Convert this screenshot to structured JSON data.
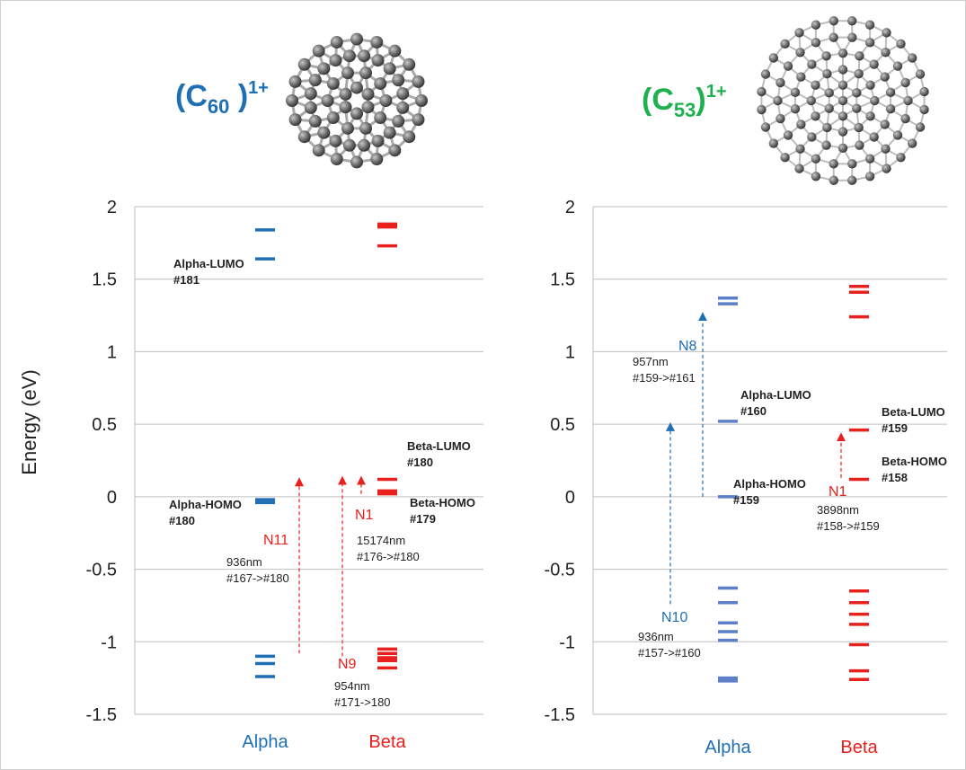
{
  "colors": {
    "alpha": "#1f6fb5",
    "alpha_c53": "#5b7fc8",
    "beta": "#e8201e",
    "c53_title": "#20b050",
    "grid": "#bfbfbf"
  },
  "ylabel": "Energy (eV)",
  "chart_data": [
    {
      "type": "energy-level diagram",
      "title": {
        "base": "(C",
        "sub": "60",
        "tail": " )",
        "sup": "1+"
      },
      "ylim": [
        -1.5,
        2
      ],
      "yticks": [
        "2",
        "1.5",
        "1",
        "0.5",
        "0",
        "-0.5",
        "-1",
        "-1.5"
      ],
      "grid": true,
      "categories": [
        "Alpha",
        "Beta"
      ],
      "levels": {
        "Alpha": [
          1.84,
          1.64,
          -0.02,
          -0.04,
          -1.1,
          -1.15,
          -1.24
        ],
        "Beta": [
          1.88,
          1.86,
          1.73,
          0.12,
          0.04,
          0.02,
          -1.05,
          -1.08,
          -1.11,
          -1.13,
          -1.18
        ]
      },
      "labels": [
        {
          "id": "alpha-lumo",
          "lines": [
            "Alpha-LUMO",
            "#181"
          ]
        },
        {
          "id": "alpha-homo",
          "lines": [
            "Alpha-HOMO",
            "#180"
          ]
        },
        {
          "id": "beta-lumo",
          "lines": [
            "Beta-LUMO",
            "#180"
          ]
        },
        {
          "id": "beta-homo",
          "lines": [
            "Beta-HOMO",
            "#179"
          ]
        }
      ],
      "transitions": [
        {
          "name": "N11",
          "wavelength": "936nm",
          "orbitals": "#167->#180",
          "from": -1.08,
          "to": 0.14,
          "spin": "beta"
        },
        {
          "name": "N9",
          "wavelength": "954nm",
          "orbitals": "#171->180",
          "from": -1.1,
          "to": 0.15,
          "spin": "beta"
        },
        {
          "name": "N1",
          "wavelength": "15174nm",
          "orbitals": "#176->#180",
          "from": 0.02,
          "to": 0.15,
          "spin": "beta"
        }
      ]
    },
    {
      "type": "energy-level diagram",
      "title": {
        "base": "(C",
        "sub": "53",
        "tail": ")",
        "sup": "1+"
      },
      "ylim": [
        -1.5,
        2
      ],
      "yticks": [
        "2",
        "1.5",
        "1",
        "0.5",
        "0",
        "-0.5",
        "-1",
        "-1.5"
      ],
      "grid": true,
      "categories": [
        "Alpha",
        "Beta"
      ],
      "levels": {
        "Alpha": [
          1.37,
          1.33,
          0.52,
          0.0,
          -0.63,
          -0.73,
          -0.87,
          -0.93,
          -0.99,
          -1.25,
          -1.27
        ],
        "Beta": [
          1.45,
          1.41,
          1.24,
          0.46,
          0.12,
          -0.65,
          -0.73,
          -0.81,
          -0.88,
          -1.02,
          -1.2,
          -1.26
        ]
      },
      "labels": [
        {
          "id": "alpha-lumo",
          "lines": [
            "Alpha-LUMO",
            "#160"
          ]
        },
        {
          "id": "alpha-homo",
          "lines": [
            "Alpha-HOMO",
            "#159"
          ]
        },
        {
          "id": "beta-lumo",
          "lines": [
            "Beta-LUMO",
            "#159"
          ]
        },
        {
          "id": "beta-homo",
          "lines": [
            "Beta-HOMO",
            "#158"
          ]
        }
      ],
      "transitions": [
        {
          "name": "N8",
          "wavelength": "957nm",
          "orbitals": "#159->#161",
          "from": 0.0,
          "to": 1.28,
          "spin": "alpha"
        },
        {
          "name": "N10",
          "wavelength": "936nm",
          "orbitals": "#157->#160",
          "from": -0.74,
          "to": 0.52,
          "spin": "alpha"
        },
        {
          "name": "N1",
          "wavelength": "3898nm",
          "orbitals": "#158->#159",
          "from": 0.13,
          "to": 0.45,
          "spin": "beta"
        }
      ]
    }
  ]
}
